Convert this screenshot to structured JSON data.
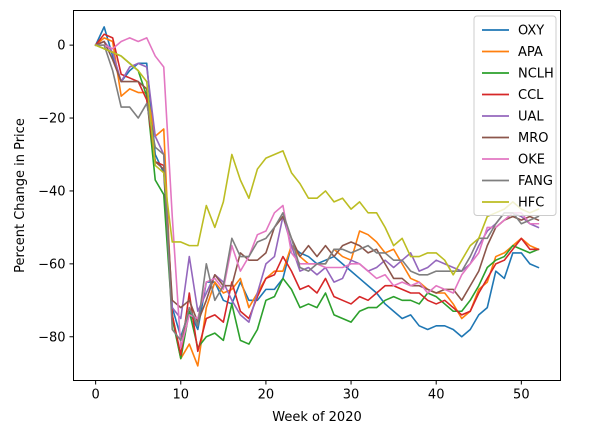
{
  "chart_data": {
    "type": "line",
    "title": "",
    "xlabel": "Week of 2020",
    "ylabel": "Percent Change in Price",
    "xlim": [
      -2.6,
      54.6
    ],
    "ylim": [
      -92,
      9.5
    ],
    "xticks": [
      0,
      10,
      20,
      30,
      40,
      50
    ],
    "yticks": [
      0,
      -20,
      -40,
      -60,
      -80
    ],
    "grid": false,
    "legend_position": "top-right",
    "x": [
      0,
      1,
      2,
      3,
      4,
      5,
      6,
      7,
      8,
      9,
      10,
      11,
      12,
      13,
      14,
      15,
      16,
      17,
      18,
      19,
      20,
      21,
      22,
      23,
      24,
      25,
      26,
      27,
      28,
      29,
      30,
      31,
      32,
      33,
      34,
      35,
      36,
      37,
      38,
      39,
      40,
      41,
      42,
      43,
      44,
      45,
      46,
      47,
      48,
      49,
      50,
      51,
      52
    ],
    "series": [
      {
        "name": "OXY",
        "color": "#1f77b4",
        "values": [
          0,
          5,
          -3,
          -10,
          -7,
          -5,
          -5,
          -30,
          -35,
          -72,
          -80,
          -73,
          -78,
          -65,
          -65,
          -70,
          -71,
          -65,
          -70,
          -70,
          -67,
          -67,
          -64,
          -55,
          -57,
          -58,
          -60,
          -59,
          -58,
          -60,
          -62,
          -64,
          -66,
          -68,
          -71,
          -73,
          -75,
          -74,
          -77,
          -78,
          -77,
          -77,
          -78,
          -80,
          -78,
          -74,
          -72,
          -62,
          -64,
          -57,
          -57,
          -60,
          -61
        ]
      },
      {
        "name": "APA",
        "color": "#ff7f0e",
        "values": [
          0,
          2,
          1,
          -14,
          -12,
          -13,
          -13,
          -25,
          -23,
          -74,
          -86,
          -82,
          -88,
          -72,
          -65,
          -68,
          -67,
          -64,
          -72,
          -68,
          -64,
          -62,
          -62,
          -55,
          -58,
          -60,
          -60,
          -60,
          -56,
          -58,
          -59,
          -51,
          -52,
          -54,
          -57,
          -56,
          -60,
          -64,
          -65,
          -67,
          -68,
          -68,
          -71,
          -75,
          -73,
          -67,
          -65,
          -58,
          -57,
          -55,
          -53,
          -55,
          -56
        ]
      },
      {
        "name": "NCLH",
        "color": "#2ca02c",
        "values": [
          0,
          -1,
          -2,
          -3,
          -5,
          -7,
          -14,
          -37,
          -41,
          -75,
          -86,
          -73,
          -83,
          -80,
          -79,
          -81,
          -71,
          -81,
          -82,
          -78,
          -70,
          -69,
          -64,
          -67,
          -72,
          -71,
          -72,
          -68,
          -74,
          -75,
          -76,
          -73,
          -72,
          -72,
          -70,
          -69,
          -70,
          -70,
          -71,
          -68,
          -69,
          -71,
          -73,
          -73,
          -70,
          -66,
          -61,
          -59,
          -58,
          -55,
          -56,
          -57,
          -56
        ]
      },
      {
        "name": "CCL",
        "color": "#d62728",
        "values": [
          0,
          3,
          2,
          -8,
          -9,
          -10,
          -15,
          -32,
          -33,
          -74,
          -85,
          -68,
          -84,
          -75,
          -74,
          -76,
          -65,
          -73,
          -75,
          -69,
          -64,
          -63,
          -58,
          -62,
          -67,
          -66,
          -68,
          -64,
          -69,
          -70,
          -71,
          -69,
          -70,
          -68,
          -66,
          -66,
          -67,
          -68,
          -68,
          -70,
          -71,
          -70,
          -72,
          -74,
          -73,
          -68,
          -64,
          -60,
          -59,
          -56,
          -53,
          -56,
          -56
        ]
      },
      {
        "name": "UAL",
        "color": "#9467bd",
        "values": [
          0,
          1,
          -2,
          -10,
          -6,
          -5,
          -6,
          -25,
          -30,
          -72,
          -75,
          -58,
          -73,
          -68,
          -63,
          -65,
          -70,
          -74,
          -76,
          -68,
          -60,
          -58,
          -47,
          -55,
          -62,
          -61,
          -63,
          -61,
          -65,
          -64,
          -59,
          -60,
          -62,
          -61,
          -59,
          -61,
          -59,
          -57,
          -62,
          -61,
          -59,
          -60,
          -61,
          -62,
          -60,
          -55,
          -51,
          -49,
          -46,
          -46,
          -47,
          -49,
          -50
        ]
      },
      {
        "name": "MRO",
        "color": "#8c564b",
        "values": [
          0,
          1,
          -4,
          -10,
          -10,
          -10,
          -12,
          -32,
          -34,
          -70,
          -72,
          -70,
          -76,
          -70,
          -63,
          -66,
          -66,
          -57,
          -59,
          -59,
          -57,
          -50,
          -47,
          -53,
          -58,
          -55,
          -58,
          -55,
          -58,
          -55,
          -54,
          -55,
          -57,
          -56,
          -60,
          -64,
          -64,
          -66,
          -66,
          -67,
          -68,
          -67,
          -67,
          -70,
          -66,
          -62,
          -55,
          -50,
          -48,
          -47,
          -48,
          -47,
          -48
        ]
      },
      {
        "name": "OKE",
        "color": "#e377c2",
        "values": [
          0,
          0,
          -1,
          1,
          2,
          1,
          2,
          -3,
          -6,
          -47,
          -83,
          -74,
          -75,
          -65,
          -64,
          -67,
          -55,
          -62,
          -58,
          -52,
          -51,
          -46,
          -44,
          -57,
          -60,
          -60,
          -60,
          -61,
          -61,
          -61,
          -60,
          -60,
          -62,
          -64,
          -63,
          -66,
          -65,
          -66,
          -65,
          -68,
          -66,
          -67,
          -68,
          -63,
          -60,
          -57,
          -50,
          -50,
          -48,
          -46,
          -46,
          -49,
          -49
        ]
      },
      {
        "name": "FANG",
        "color": "#7f7f7f",
        "values": [
          0,
          0,
          -7,
          -17,
          -17,
          -20,
          -16,
          -28,
          -30,
          -78,
          -81,
          -72,
          -77,
          -60,
          -70,
          -66,
          -53,
          -58,
          -58,
          -54,
          -53,
          -50,
          -46,
          -53,
          -61,
          -62,
          -60,
          -60,
          -56,
          -56,
          -57,
          -56,
          -55,
          -57,
          -57,
          -59,
          -59,
          -62,
          -63,
          -63,
          -62,
          -62,
          -62,
          -62,
          -58,
          -53,
          -53,
          -49,
          -46,
          -46,
          -49,
          -48,
          -47
        ]
      },
      {
        "name": "HFC",
        "color": "#bcbd22",
        "values": [
          0,
          -1,
          -2,
          -3,
          -5,
          -7,
          -10,
          -33,
          -35,
          -54,
          -54,
          -55,
          -55,
          -44,
          -50,
          -43,
          -30,
          -37,
          -42,
          -34,
          -31,
          -30,
          -29,
          -35,
          -38,
          -42,
          -42,
          -40,
          -43,
          -42,
          -45,
          -43,
          -46,
          -46,
          -50,
          -55,
          -53,
          -58,
          -58,
          -57,
          -57,
          -59,
          -63,
          -59,
          -55,
          -53,
          -47,
          -46,
          -45,
          -43,
          -45,
          -46,
          -45
        ]
      }
    ]
  }
}
